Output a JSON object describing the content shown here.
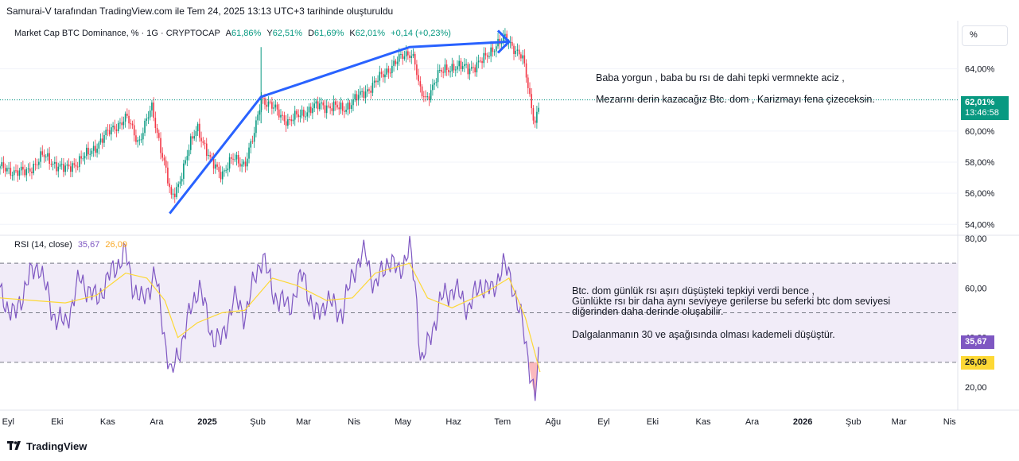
{
  "header": {
    "title": "Samurai-V tarafından TradingView.com ile Tem 24, 2025 13:13 UTC+3 tarihinde oluşturuldu"
  },
  "legend_main": {
    "name": "Market Cap BTC Dominance, % · 1G · CRYPTOCAP",
    "a_label": "A",
    "a_value": "61,86%",
    "y_label": "Y",
    "y_value": "62,51%",
    "d_label": "D",
    "d_value": "61,69%",
    "k_label": "K",
    "k_value": "62,01%",
    "change": "+0,14 (+0,23%)"
  },
  "legend_rsi": {
    "name": "RSI (14, close)",
    "rsi_value": "35,67",
    "ma_value": "26,09"
  },
  "scale_button": {
    "label": "%"
  },
  "price_badge": {
    "price": "62,01%",
    "countdown": "13:46:58"
  },
  "rsi_badges": {
    "rsi": "35,67",
    "ma": "26,09"
  },
  "annotations": {
    "price_line1": "Baba yorgun , baba bu rsı de dahi tepki vermnekte aciz ,",
    "price_line2": "Mezarını derin kazacağız Btc. dom , Karizmayı fena çizeceksin.",
    "rsi_line1": "Btc. dom  günlük rsı aşırı düşüşteki tepkiyi verdi bence ,",
    "rsi_line2": "Günlükte rsı bir daha aynı seviyeye gerilerse  bu seferki btc dom seviyesi",
    "rsi_line3": "diğerinden daha derinde oluşabilir.",
    "rsi_line4": "Dalgalanmanın 30 ve aşağısında olması kademeli düşüştür."
  },
  "footer": {
    "brand": "TradingView"
  },
  "colors": {
    "up": "#089981",
    "down": "#f23645",
    "rsi_line": "#7e57c2",
    "rsi_ma": "#fdd835",
    "trend": "#2962ff",
    "band": "#ede7f6"
  },
  "chart_data": [
    {
      "type": "candlestick",
      "title": "Market Cap BTC Dominance, % · 1G · CRYPTOCAP",
      "y_tick_labels": [
        "54,00%",
        "56,00%",
        "58,00%",
        "60,00%",
        "62,00%",
        "64,00%"
      ],
      "y_ticks": [
        54,
        56,
        58,
        60,
        62,
        64
      ],
      "ylim": [
        53.4,
        67.1
      ],
      "x_tick_labels": [
        "Eyl",
        "Eki",
        "Kas",
        "Ara",
        "2025",
        "Şub",
        "Mar",
        "Nis",
        "May",
        "Haz",
        "Tem",
        "Ağu",
        "Eyl",
        "Eki",
        "Kas",
        "Ara",
        "2026",
        "Şub",
        "Mar",
        "Nis"
      ],
      "x_tick_dates": [
        "2024-09-01",
        "2024-10-01",
        "2024-11-01",
        "2024-12-01",
        "2025-01-01",
        "2025-02-01",
        "2025-03-01",
        "2025-04-01",
        "2025-05-01",
        "2025-06-01",
        "2025-07-01",
        "2025-08-01",
        "2025-09-01",
        "2025-10-01",
        "2025-11-01",
        "2025-12-01",
        "2026-01-01",
        "2026-02-01",
        "2026-03-01",
        "2026-04-01"
      ],
      "close_path": [
        {
          "date": "2024-08-27",
          "value": 57.6
        },
        {
          "date": "2024-09-12",
          "value": 57.3
        },
        {
          "date": "2024-09-22",
          "value": 58.4
        },
        {
          "date": "2024-10-06",
          "value": 57.5
        },
        {
          "date": "2024-10-20",
          "value": 58.5
        },
        {
          "date": "2024-11-05",
          "value": 60.3
        },
        {
          "date": "2024-11-13",
          "value": 60.8
        },
        {
          "date": "2024-11-20",
          "value": 59.3
        },
        {
          "date": "2024-11-28",
          "value": 61.5
        },
        {
          "date": "2024-12-06",
          "value": 57.8
        },
        {
          "date": "2024-12-10",
          "value": 55.6
        },
        {
          "date": "2024-12-14",
          "value": 56.5
        },
        {
          "date": "2024-12-22",
          "value": 59.2
        },
        {
          "date": "2024-12-26",
          "value": 60.3
        },
        {
          "date": "2025-01-03",
          "value": 58.0
        },
        {
          "date": "2025-01-10",
          "value": 57.3
        },
        {
          "date": "2025-01-17",
          "value": 58.2
        },
        {
          "date": "2025-01-24",
          "value": 57.9
        },
        {
          "date": "2025-01-30",
          "value": 59.8
        },
        {
          "date": "2025-02-03",
          "value": 62.2
        },
        {
          "date": "2025-02-10",
          "value": 61.5
        },
        {
          "date": "2025-02-20",
          "value": 60.6
        },
        {
          "date": "2025-03-01",
          "value": 61.2
        },
        {
          "date": "2025-03-12",
          "value": 61.7
        },
        {
          "date": "2025-03-25",
          "value": 61.4
        },
        {
          "date": "2025-04-05",
          "value": 62.3
        },
        {
          "date": "2025-04-15",
          "value": 63.2
        },
        {
          "date": "2025-04-25",
          "value": 64.3
        },
        {
          "date": "2025-05-05",
          "value": 65.1
        },
        {
          "date": "2025-05-08",
          "value": 64.7
        },
        {
          "date": "2025-05-11",
          "value": 62.6
        },
        {
          "date": "2025-05-15",
          "value": 62.0
        },
        {
          "date": "2025-05-22",
          "value": 63.6
        },
        {
          "date": "2025-06-01",
          "value": 64.2
        },
        {
          "date": "2025-06-10",
          "value": 64.0
        },
        {
          "date": "2025-06-20",
          "value": 64.6
        },
        {
          "date": "2025-06-27",
          "value": 65.6
        },
        {
          "date": "2025-07-02",
          "value": 65.9
        },
        {
          "date": "2025-07-08",
          "value": 65.4
        },
        {
          "date": "2025-07-13",
          "value": 64.8
        },
        {
          "date": "2025-07-16",
          "value": 63.2
        },
        {
          "date": "2025-07-19",
          "value": 61.3
        },
        {
          "date": "2025-07-21",
          "value": 60.7
        },
        {
          "date": "2025-07-24",
          "value": 62.01
        }
      ],
      "trend_lines": [
        {
          "points": [
            {
              "date": "2024-12-09",
              "value": 54.7
            },
            {
              "date": "2025-02-03",
              "value": 62.2
            },
            {
              "date": "2025-05-05",
              "value": 65.4
            },
            {
              "date": "2025-07-05",
              "value": 65.75
            }
          ],
          "arrow": true
        }
      ],
      "last_value": 62.01
    },
    {
      "type": "line",
      "title": "RSI (14, close)",
      "y_tick_labels": [
        "20,00",
        "40,00",
        "60,00",
        "80,00"
      ],
      "y_ticks": [
        20,
        40,
        60,
        80
      ],
      "ylim": [
        12,
        80
      ],
      "bands": [
        70,
        50,
        30
      ],
      "x_tick_labels": [
        "Eyl",
        "Eki",
        "Kas",
        "Ara",
        "2025",
        "Şub",
        "Mar",
        "Nis",
        "May",
        "Haz",
        "Tem",
        "Ağu",
        "Eyl",
        "Eki",
        "Kas",
        "Ara",
        "2026",
        "Şub",
        "Mar",
        "Nis"
      ],
      "series": [
        {
          "name": "RSI",
          "points": [
            {
              "date": "2024-08-27",
              "value": 58
            },
            {
              "date": "2024-09-05",
              "value": 48
            },
            {
              "date": "2024-09-12",
              "value": 62
            },
            {
              "date": "2024-09-20",
              "value": 70
            },
            {
              "date": "2024-09-28",
              "value": 50
            },
            {
              "date": "2024-10-06",
              "value": 45
            },
            {
              "date": "2024-10-15",
              "value": 64
            },
            {
              "date": "2024-10-25",
              "value": 55
            },
            {
              "date": "2024-11-05",
              "value": 68
            },
            {
              "date": "2024-11-12",
              "value": 74
            },
            {
              "date": "2024-11-16",
              "value": 62
            },
            {
              "date": "2024-11-22",
              "value": 54
            },
            {
              "date": "2024-11-30",
              "value": 66
            },
            {
              "date": "2024-12-06",
              "value": 40
            },
            {
              "date": "2024-12-10",
              "value": 24
            },
            {
              "date": "2024-12-14",
              "value": 33
            },
            {
              "date": "2024-12-22",
              "value": 51
            },
            {
              "date": "2024-12-27",
              "value": 62
            },
            {
              "date": "2025-01-03",
              "value": 42
            },
            {
              "date": "2025-01-10",
              "value": 38
            },
            {
              "date": "2025-01-17",
              "value": 56
            },
            {
              "date": "2025-01-24",
              "value": 49
            },
            {
              "date": "2025-01-30",
              "value": 63
            },
            {
              "date": "2025-02-04",
              "value": 74
            },
            {
              "date": "2025-02-10",
              "value": 58
            },
            {
              "date": "2025-02-20",
              "value": 52
            },
            {
              "date": "2025-03-01",
              "value": 66
            },
            {
              "date": "2025-03-08",
              "value": 48
            },
            {
              "date": "2025-03-15",
              "value": 55
            },
            {
              "date": "2025-03-25",
              "value": 50
            },
            {
              "date": "2025-04-01",
              "value": 68
            },
            {
              "date": "2025-04-08",
              "value": 74
            },
            {
              "date": "2025-04-14",
              "value": 60
            },
            {
              "date": "2025-04-22",
              "value": 72
            },
            {
              "date": "2025-04-28",
              "value": 66
            },
            {
              "date": "2025-05-05",
              "value": 76
            },
            {
              "date": "2025-05-09",
              "value": 58
            },
            {
              "date": "2025-05-12",
              "value": 30
            },
            {
              "date": "2025-05-16",
              "value": 36
            },
            {
              "date": "2025-05-24",
              "value": 55
            },
            {
              "date": "2025-06-01",
              "value": 60
            },
            {
              "date": "2025-06-10",
              "value": 52
            },
            {
              "date": "2025-06-18",
              "value": 62
            },
            {
              "date": "2025-06-25",
              "value": 58
            },
            {
              "date": "2025-07-01",
              "value": 70
            },
            {
              "date": "2025-07-07",
              "value": 62
            },
            {
              "date": "2025-07-11",
              "value": 52
            },
            {
              "date": "2025-07-15",
              "value": 38
            },
            {
              "date": "2025-07-18",
              "value": 27
            },
            {
              "date": "2025-07-21",
              "value": 16
            },
            {
              "date": "2025-07-24",
              "value": 35.67
            }
          ]
        },
        {
          "name": "RSI-based MA",
          "points": [
            {
              "date": "2024-08-27",
              "value": 56
            },
            {
              "date": "2024-09-15",
              "value": 55
            },
            {
              "date": "2024-10-06",
              "value": 54
            },
            {
              "date": "2024-10-25",
              "value": 57
            },
            {
              "date": "2024-11-12",
              "value": 66
            },
            {
              "date": "2024-11-25",
              "value": 64
            },
            {
              "date": "2024-12-06",
              "value": 55
            },
            {
              "date": "2024-12-14",
              "value": 40
            },
            {
              "date": "2024-12-26",
              "value": 46
            },
            {
              "date": "2025-01-10",
              "value": 50
            },
            {
              "date": "2025-01-24",
              "value": 51
            },
            {
              "date": "2025-02-10",
              "value": 64
            },
            {
              "date": "2025-02-25",
              "value": 61
            },
            {
              "date": "2025-03-15",
              "value": 55
            },
            {
              "date": "2025-03-31",
              "value": 56
            },
            {
              "date": "2025-04-14",
              "value": 66
            },
            {
              "date": "2025-05-05",
              "value": 70
            },
            {
              "date": "2025-05-16",
              "value": 56
            },
            {
              "date": "2025-05-31",
              "value": 52
            },
            {
              "date": "2025-06-20",
              "value": 58
            },
            {
              "date": "2025-07-05",
              "value": 64
            },
            {
              "date": "2025-07-15",
              "value": 48
            },
            {
              "date": "2025-07-24",
              "value": 26.09
            }
          ]
        }
      ]
    }
  ]
}
